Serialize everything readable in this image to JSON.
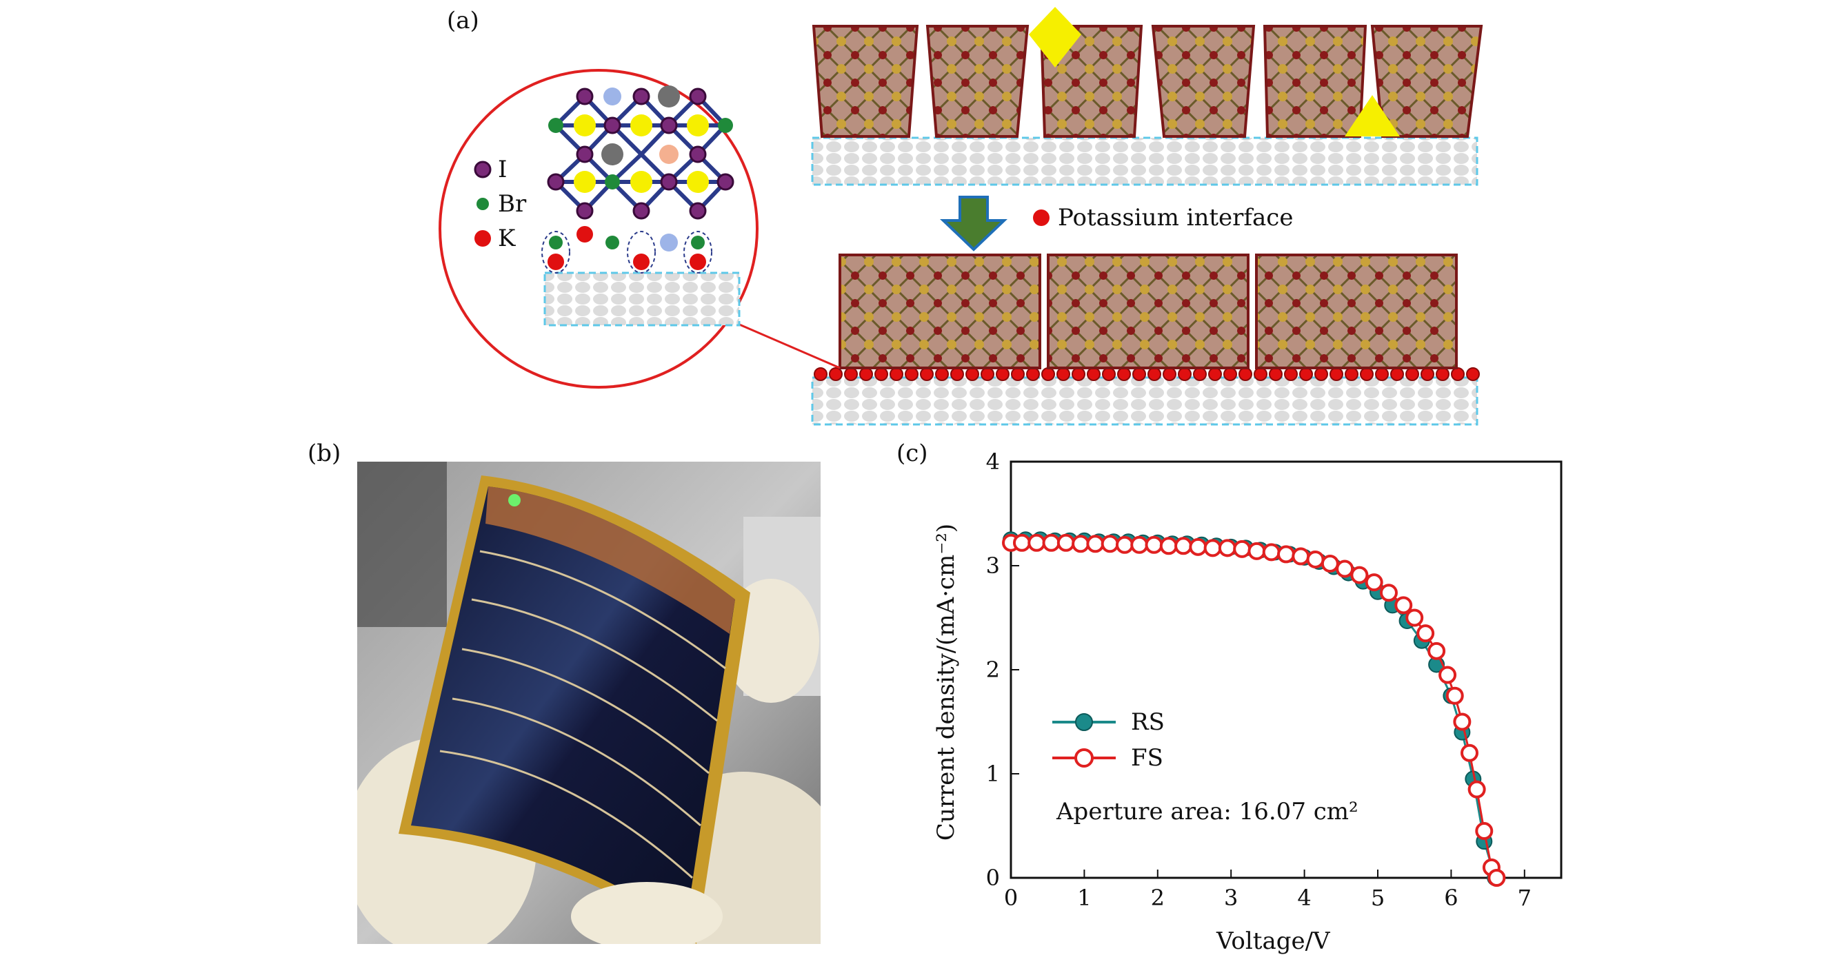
{
  "panels": {
    "a_label": "(a)",
    "b_label": "(b)",
    "c_label": "(c)"
  },
  "diagram": {
    "legend": [
      {
        "symbol": "I",
        "color": "#7a2a78"
      },
      {
        "symbol": "Br",
        "color": "#1f8a3a"
      },
      {
        "symbol": "K",
        "color": "#e01010"
      }
    ],
    "interface_label": "Potassium interface",
    "colors": {
      "grain": "#b89080",
      "grain_border": "#7a1818",
      "substrate": "#dcdcdc",
      "defect": "#f6ef00",
      "arrow": "#4a7d2e",
      "callout": "#e02020"
    }
  },
  "photo": {
    "description_icon": "flexible-solar-module-photo"
  },
  "chart_data": {
    "type": "line",
    "xlabel": "Voltage/V",
    "ylabel": "Current density/(mA·cm⁻²)",
    "xlim": [
      0,
      7.5
    ],
    "ylim": [
      0,
      4
    ],
    "xticks": [
      0,
      1,
      2,
      3,
      4,
      5,
      6,
      7
    ],
    "yticks": [
      0,
      1,
      2,
      3,
      4
    ],
    "legend_position": "center-left",
    "annotation": "Aperture area: 16.07 cm²",
    "series": [
      {
        "name": "RS",
        "color": "#1b8a8a",
        "marker": "filled-circle",
        "x": [
          0,
          0.2,
          0.4,
          0.6,
          0.8,
          1.0,
          1.2,
          1.4,
          1.6,
          1.8,
          2.0,
          2.2,
          2.4,
          2.6,
          2.8,
          3.0,
          3.2,
          3.4,
          3.6,
          3.8,
          4.0,
          4.2,
          4.4,
          4.6,
          4.8,
          5.0,
          5.2,
          5.4,
          5.6,
          5.8,
          6.0,
          6.15,
          6.3,
          6.45,
          6.6
        ],
        "y": [
          3.25,
          3.25,
          3.25,
          3.24,
          3.24,
          3.24,
          3.23,
          3.23,
          3.23,
          3.22,
          3.22,
          3.21,
          3.21,
          3.2,
          3.19,
          3.18,
          3.17,
          3.15,
          3.13,
          3.11,
          3.08,
          3.04,
          2.99,
          2.93,
          2.85,
          2.75,
          2.62,
          2.47,
          2.28,
          2.05,
          1.75,
          1.4,
          0.95,
          0.35,
          0.0
        ]
      },
      {
        "name": "FS",
        "color": "#e02020",
        "marker": "open-circle",
        "x": [
          0,
          0.15,
          0.35,
          0.55,
          0.75,
          0.95,
          1.15,
          1.35,
          1.55,
          1.75,
          1.95,
          2.15,
          2.35,
          2.55,
          2.75,
          2.95,
          3.15,
          3.35,
          3.55,
          3.75,
          3.95,
          4.15,
          4.35,
          4.55,
          4.75,
          4.95,
          5.15,
          5.35,
          5.5,
          5.65,
          5.8,
          5.95,
          6.05,
          6.15,
          6.25,
          6.35,
          6.45,
          6.55,
          6.62
        ],
        "y": [
          3.22,
          3.22,
          3.22,
          3.22,
          3.22,
          3.21,
          3.21,
          3.21,
          3.2,
          3.2,
          3.2,
          3.19,
          3.19,
          3.18,
          3.17,
          3.17,
          3.16,
          3.14,
          3.13,
          3.11,
          3.09,
          3.06,
          3.02,
          2.97,
          2.91,
          2.84,
          2.74,
          2.62,
          2.5,
          2.35,
          2.18,
          1.95,
          1.75,
          1.5,
          1.2,
          0.85,
          0.45,
          0.1,
          0.0
        ]
      }
    ]
  }
}
